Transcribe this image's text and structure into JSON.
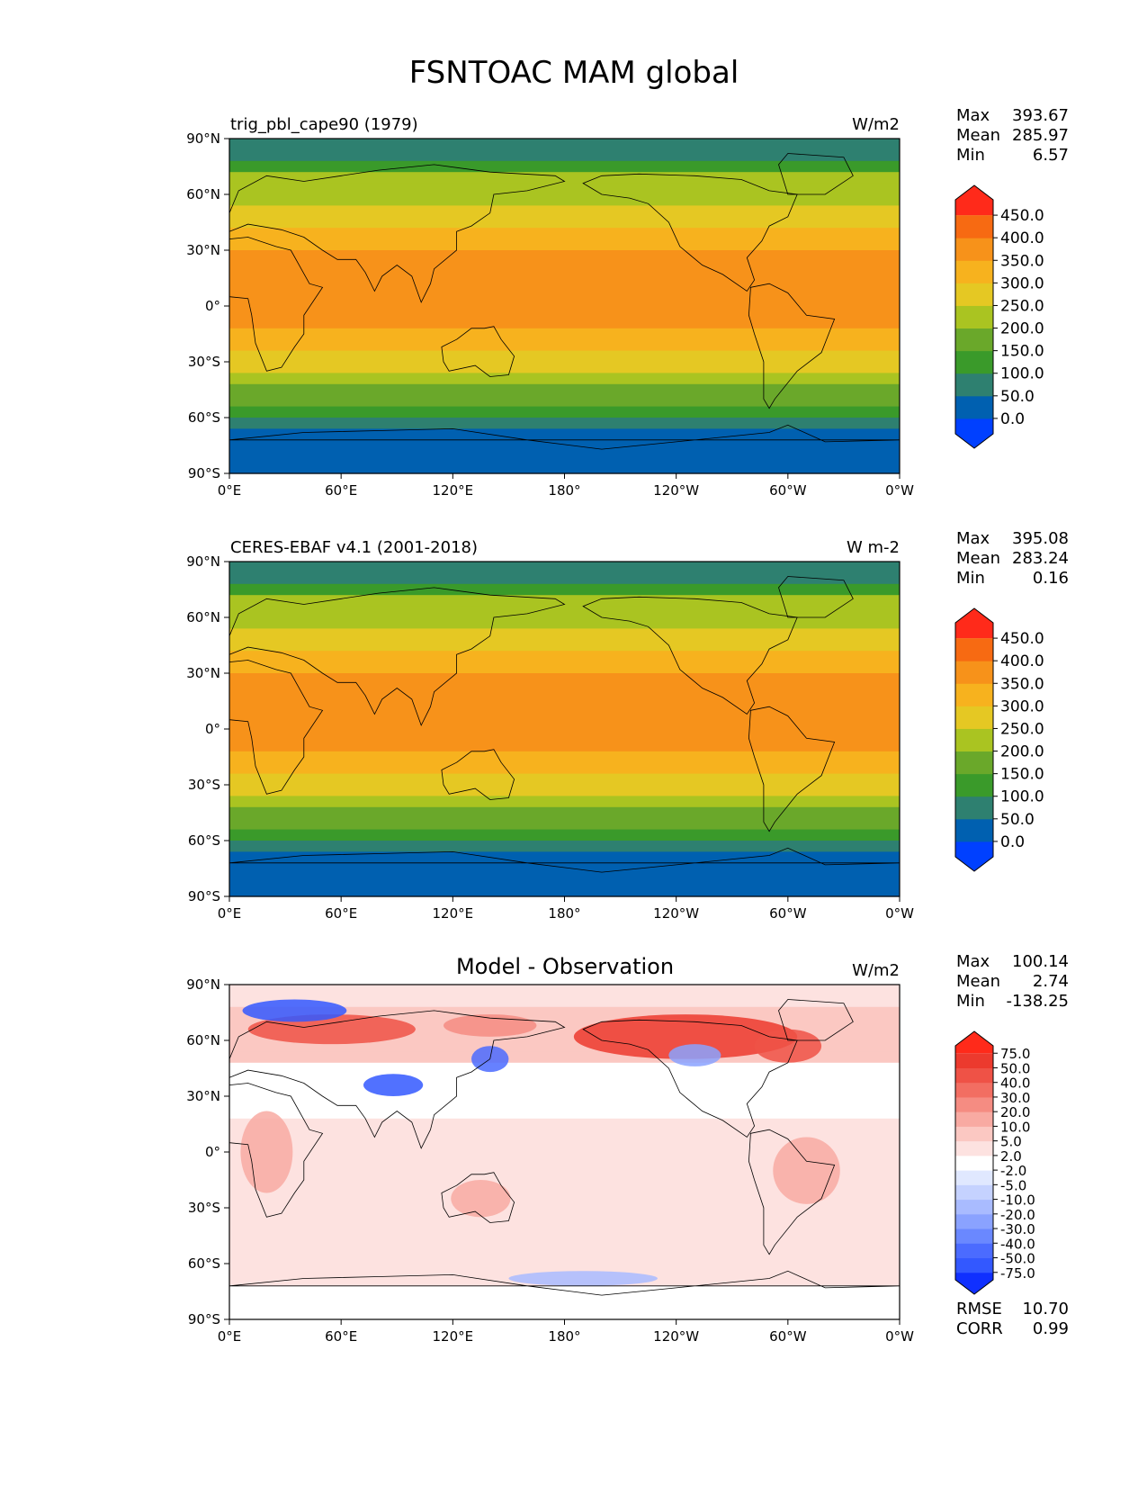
{
  "figure_title": "FSNTOAC MAM global",
  "colors": {
    "ocean": "#ffffff",
    "land_line": "#000000",
    "ref_palette": [
      "#0040ff",
      "#0060b0",
      "#2e8070",
      "#3a9a2a",
      "#6aa82a",
      "#aac421",
      "#e5c823",
      "#f7b21e",
      "#f7921a",
      "#f76a12",
      "#ff2a1a"
    ],
    "diff_palette": [
      "#1030ff",
      "#3358ff",
      "#4b6bff",
      "#6a88ff",
      "#8aa2ff",
      "#a9bbff",
      "#c5d2ff",
      "#e0e8ff",
      "#ffffff",
      "#fde2e0",
      "#fbc8c2",
      "#f8aaa2",
      "#f58c82",
      "#f26e62",
      "#ef5246",
      "#ec3a2e",
      "#ff2a1a"
    ]
  },
  "chart_data": [
    {
      "type": "heatmap",
      "title_left": "trig_pbl_cape90 (1979)",
      "title_center": "",
      "units": "W/m2",
      "stats": [
        {
          "label": "Max",
          "value": "393.67"
        },
        {
          "label": "Mean",
          "value": "285.97"
        },
        {
          "label": "Min",
          "value": "6.57"
        }
      ],
      "colorbar_labels": [
        "450.0",
        "400.0",
        "350.0",
        "300.0",
        "250.0",
        "200.0",
        "150.0",
        "100.0",
        "50.0",
        "0.0"
      ],
      "lat_ticks": [
        "90°N",
        "60°N",
        "30°N",
        "0°",
        "30°S",
        "60°S",
        "90°S"
      ],
      "lon_ticks": [
        "0°E",
        "60°E",
        "120°E",
        "180°",
        "120°W",
        "60°W",
        "0°W"
      ],
      "lat_range": [
        -90,
        90
      ],
      "lon_range": [
        0,
        360
      ],
      "footer": []
    },
    {
      "type": "heatmap",
      "title_left": "CERES-EBAF v4.1 (2001-2018)",
      "title_center": "",
      "units": "W m-2",
      "stats": [
        {
          "label": "Max",
          "value": "395.08"
        },
        {
          "label": "Mean",
          "value": "283.24"
        },
        {
          "label": "Min",
          "value": "0.16"
        }
      ],
      "colorbar_labels": [
        "450.0",
        "400.0",
        "350.0",
        "300.0",
        "250.0",
        "200.0",
        "150.0",
        "100.0",
        "50.0",
        "0.0"
      ],
      "lat_ticks": [
        "90°N",
        "60°N",
        "30°N",
        "0°",
        "30°S",
        "60°S",
        "90°S"
      ],
      "lon_ticks": [
        "0°E",
        "60°E",
        "120°E",
        "180°",
        "120°W",
        "60°W",
        "0°W"
      ],
      "lat_range": [
        -90,
        90
      ],
      "lon_range": [
        0,
        360
      ],
      "footer": []
    },
    {
      "type": "heatmap",
      "title_left": "",
      "title_center": "Model - Observation",
      "units": "W/m2",
      "stats": [
        {
          "label": "Max",
          "value": "100.14"
        },
        {
          "label": "Mean",
          "value": "2.74"
        },
        {
          "label": "Min",
          "value": "-138.25"
        }
      ],
      "colorbar_labels": [
        "75.0",
        "50.0",
        "40.0",
        "30.0",
        "20.0",
        "10.0",
        "5.0",
        "2.0",
        "-2.0",
        "-5.0",
        "-10.0",
        "-20.0",
        "-30.0",
        "-40.0",
        "-50.0",
        "-75.0"
      ],
      "lat_ticks": [
        "90°N",
        "60°N",
        "30°N",
        "0°",
        "30°S",
        "60°S",
        "90°S"
      ],
      "lon_ticks": [
        "0°E",
        "60°E",
        "120°E",
        "180°",
        "120°W",
        "60°W",
        "0°W"
      ],
      "lat_range": [
        -90,
        90
      ],
      "lon_range": [
        0,
        360
      ],
      "footer": [
        {
          "label": "RMSE",
          "value": "10.70"
        },
        {
          "label": "CORR",
          "value": "0.99"
        }
      ]
    }
  ]
}
